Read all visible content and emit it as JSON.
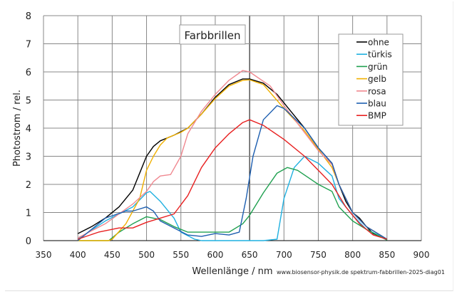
{
  "chart_data": {
    "type": "line",
    "title": "Farbbrillen",
    "xlabel": "Wellenlänge / nm",
    "ylabel": "Photostrom / rel.",
    "footer": "www.biosensor-physik.de  spektrum-fabbrillen-2025-diag01",
    "xlim": [
      350,
      900
    ],
    "ylim": [
      0,
      8
    ],
    "xticks": [
      350,
      400,
      450,
      500,
      550,
      600,
      650,
      700,
      750,
      800,
      850,
      900
    ],
    "yticks": [
      0,
      1,
      2,
      3,
      4,
      5,
      6,
      7,
      8
    ],
    "grid": true,
    "legend_position": "top-right",
    "series": [
      {
        "name": "ohne",
        "color": "#000000",
        "points": [
          [
            400,
            0.25
          ],
          [
            420,
            0.5
          ],
          [
            440,
            0.8
          ],
          [
            460,
            1.2
          ],
          [
            480,
            1.8
          ],
          [
            490,
            2.4
          ],
          [
            500,
            3.0
          ],
          [
            510,
            3.35
          ],
          [
            520,
            3.55
          ],
          [
            540,
            3.75
          ],
          [
            560,
            4.0
          ],
          [
            580,
            4.5
          ],
          [
            600,
            5.1
          ],
          [
            620,
            5.55
          ],
          [
            640,
            5.75
          ],
          [
            650,
            5.75
          ],
          [
            670,
            5.6
          ],
          [
            690,
            5.2
          ],
          [
            710,
            4.6
          ],
          [
            730,
            4.0
          ],
          [
            750,
            3.3
          ],
          [
            770,
            2.75
          ],
          [
            780,
            2.0
          ],
          [
            790,
            1.4
          ],
          [
            800,
            1.0
          ],
          [
            810,
            0.8
          ],
          [
            820,
            0.5
          ],
          [
            830,
            0.25
          ],
          [
            850,
            0.05
          ]
        ]
      },
      {
        "name": "türkis",
        "color": "#1fb0e0",
        "points": [
          [
            400,
            0.05
          ],
          [
            440,
            0.7
          ],
          [
            480,
            1.2
          ],
          [
            500,
            1.7
          ],
          [
            505,
            1.75
          ],
          [
            520,
            1.4
          ],
          [
            540,
            0.8
          ],
          [
            550,
            0.3
          ],
          [
            570,
            0.05
          ],
          [
            580,
            0
          ],
          [
            670,
            0
          ],
          [
            690,
            0.05
          ],
          [
            700,
            1.5
          ],
          [
            715,
            2.6
          ],
          [
            730,
            3.0
          ],
          [
            750,
            2.75
          ],
          [
            770,
            2.3
          ],
          [
            780,
            1.5
          ],
          [
            800,
            0.9
          ],
          [
            820,
            0.4
          ],
          [
            850,
            0.05
          ]
        ]
      },
      {
        "name": "grün",
        "color": "#20a050",
        "points": [
          [
            400,
            0
          ],
          [
            445,
            0
          ],
          [
            460,
            0.3
          ],
          [
            480,
            0.6
          ],
          [
            500,
            0.85
          ],
          [
            520,
            0.75
          ],
          [
            540,
            0.5
          ],
          [
            560,
            0.3
          ],
          [
            600,
            0.3
          ],
          [
            620,
            0.3
          ],
          [
            640,
            0.6
          ],
          [
            650,
            0.9
          ],
          [
            670,
            1.7
          ],
          [
            690,
            2.4
          ],
          [
            705,
            2.6
          ],
          [
            720,
            2.5
          ],
          [
            750,
            2.0
          ],
          [
            770,
            1.75
          ],
          [
            780,
            1.2
          ],
          [
            800,
            0.7
          ],
          [
            820,
            0.4
          ],
          [
            850,
            0.02
          ]
        ]
      },
      {
        "name": "gelb",
        "color": "#f0b000",
        "points": [
          [
            400,
            0
          ],
          [
            445,
            0
          ],
          [
            450,
            0.05
          ],
          [
            470,
            0.6
          ],
          [
            490,
            1.5
          ],
          [
            500,
            2.5
          ],
          [
            510,
            3.0
          ],
          [
            520,
            3.4
          ],
          [
            530,
            3.65
          ],
          [
            550,
            3.85
          ],
          [
            560,
            4.0
          ],
          [
            580,
            4.5
          ],
          [
            600,
            5.05
          ],
          [
            620,
            5.5
          ],
          [
            640,
            5.7
          ],
          [
            650,
            5.72
          ],
          [
            670,
            5.55
          ],
          [
            700,
            4.7
          ],
          [
            730,
            3.9
          ],
          [
            750,
            3.25
          ],
          [
            770,
            2.6
          ],
          [
            780,
            2.0
          ],
          [
            800,
            1.0
          ],
          [
            820,
            0.5
          ],
          [
            850,
            0.05
          ]
        ]
      },
      {
        "name": "rosa",
        "color": "#f08890",
        "points": [
          [
            400,
            0.1
          ],
          [
            440,
            0.6
          ],
          [
            480,
            1.3
          ],
          [
            500,
            1.75
          ],
          [
            510,
            2.1
          ],
          [
            520,
            2.3
          ],
          [
            535,
            2.35
          ],
          [
            550,
            3.0
          ],
          [
            560,
            3.8
          ],
          [
            580,
            4.6
          ],
          [
            600,
            5.2
          ],
          [
            620,
            5.7
          ],
          [
            640,
            6.05
          ],
          [
            650,
            6.0
          ],
          [
            680,
            5.5
          ],
          [
            700,
            4.8
          ],
          [
            750,
            3.2
          ],
          [
            770,
            2.7
          ],
          [
            780,
            2.0
          ],
          [
            800,
            1.0
          ],
          [
            820,
            0.5
          ],
          [
            850,
            0.05
          ]
        ]
      },
      {
        "name": "blau",
        "color": "#1e5fb0",
        "points": [
          [
            400,
            0
          ],
          [
            440,
            0.8
          ],
          [
            470,
            1.05
          ],
          [
            480,
            1.05
          ],
          [
            500,
            1.2
          ],
          [
            510,
            1.05
          ],
          [
            520,
            0.7
          ],
          [
            540,
            0.45
          ],
          [
            560,
            0.2
          ],
          [
            580,
            0.15
          ],
          [
            600,
            0.25
          ],
          [
            620,
            0.2
          ],
          [
            635,
            0.3
          ],
          [
            645,
            1.5
          ],
          [
            655,
            3.0
          ],
          [
            670,
            4.3
          ],
          [
            690,
            4.8
          ],
          [
            700,
            4.7
          ],
          [
            730,
            4.0
          ],
          [
            750,
            3.3
          ],
          [
            770,
            2.75
          ],
          [
            780,
            2.0
          ],
          [
            800,
            1.0
          ],
          [
            820,
            0.5
          ],
          [
            850,
            0.05
          ]
        ]
      },
      {
        "name": "BMP",
        "color": "#e82020",
        "points": [
          [
            400,
            0.05
          ],
          [
            430,
            0.3
          ],
          [
            460,
            0.45
          ],
          [
            480,
            0.45
          ],
          [
            500,
            0.65
          ],
          [
            520,
            0.8
          ],
          [
            540,
            0.95
          ],
          [
            560,
            1.6
          ],
          [
            580,
            2.6
          ],
          [
            600,
            3.3
          ],
          [
            620,
            3.8
          ],
          [
            640,
            4.2
          ],
          [
            650,
            4.3
          ],
          [
            670,
            4.1
          ],
          [
            700,
            3.6
          ],
          [
            730,
            3.0
          ],
          [
            750,
            2.5
          ],
          [
            770,
            2.0
          ],
          [
            790,
            1.2
          ],
          [
            810,
            0.6
          ],
          [
            830,
            0.2
          ],
          [
            850,
            0.05
          ]
        ]
      }
    ]
  }
}
